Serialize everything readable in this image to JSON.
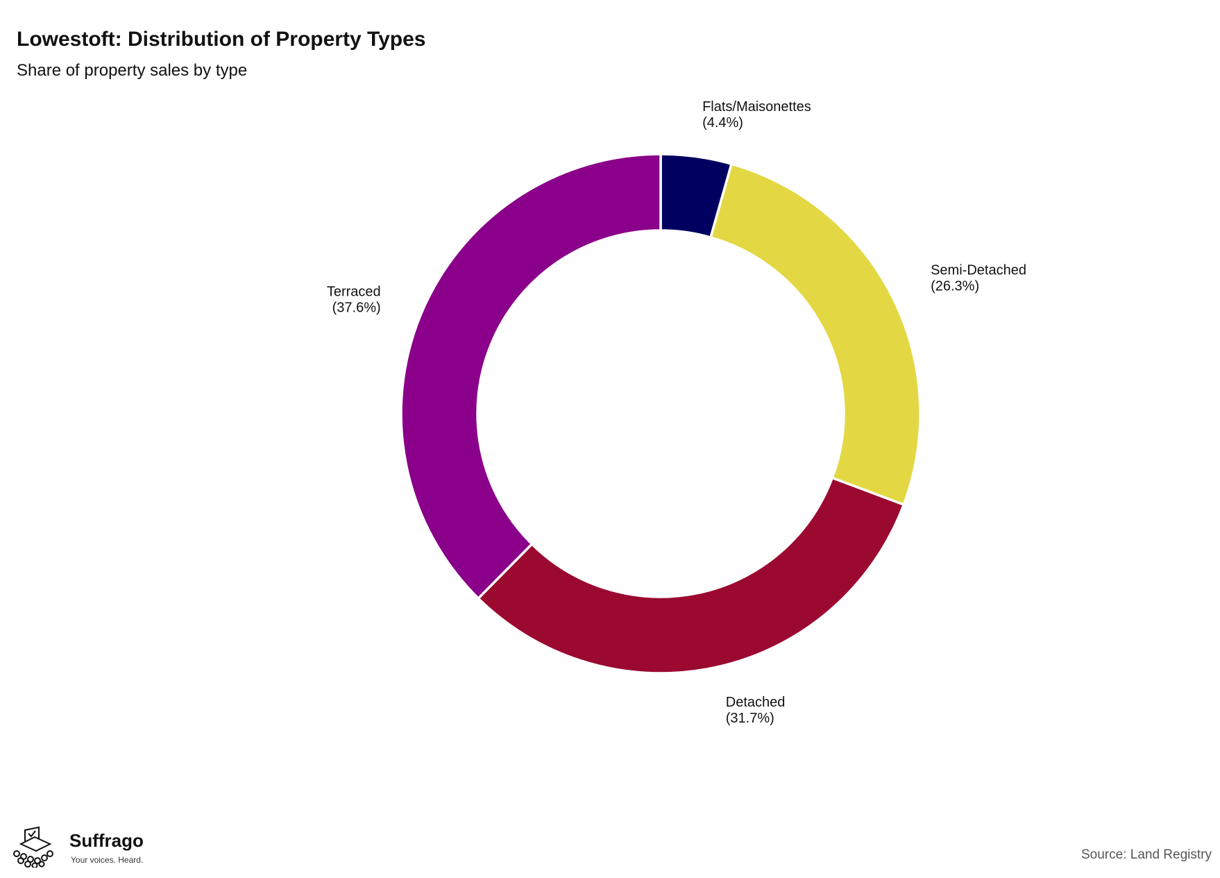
{
  "chart_data": {
    "type": "pie",
    "title": "Lowestoft: Distribution of Property Types",
    "subtitle": "Share of property sales by type",
    "donut": true,
    "categories": [
      "Flats/Maisonettes",
      "Semi-Detached",
      "Detached",
      "Terraced"
    ],
    "values": [
      4.4,
      26.3,
      31.7,
      37.6
    ],
    "value_labels": [
      "(4.4%)",
      "(26.3%)",
      "(31.7%)",
      "(37.6%)"
    ],
    "colors": [
      "#000060",
      "#e3d843",
      "#9b0931",
      "#8a008a"
    ],
    "legend": "none",
    "source": "Source: Land Registry"
  },
  "branding": {
    "logo_name": "Suffrago",
    "logo_tagline": "Your voices. Heard.",
    "logo_icon": "ballot-box-crowd-icon"
  }
}
